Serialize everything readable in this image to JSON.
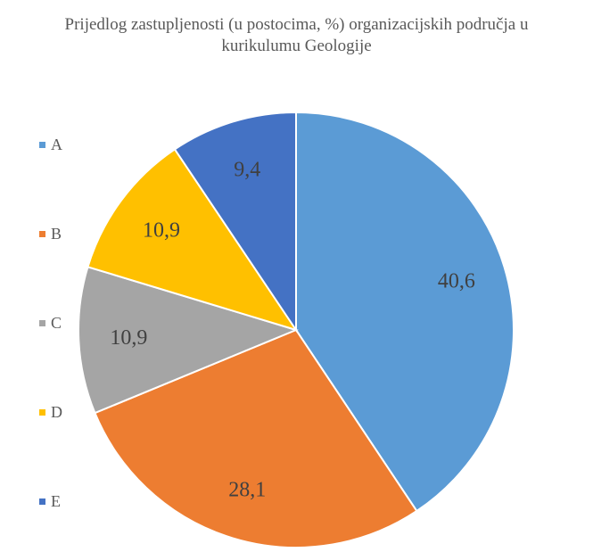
{
  "chart_data": {
    "type": "pie",
    "title_lines": [
      "Prijedlog zastupljenosti (u postocima, %) organizacijskih područja u",
      "kurikulumu Geologije"
    ],
    "legend_position": "left",
    "categories": [
      "A",
      "B",
      "C",
      "D",
      "E"
    ],
    "values": [
      40.6,
      28.1,
      10.9,
      10.9,
      9.4
    ],
    "data_labels": [
      "40,6",
      "28,1",
      "10,9",
      "10,9",
      "9,4"
    ],
    "colors": [
      "#5B9BD5",
      "#ED7D31",
      "#A5A5A5",
      "#FFC000",
      "#4472C4"
    ]
  }
}
